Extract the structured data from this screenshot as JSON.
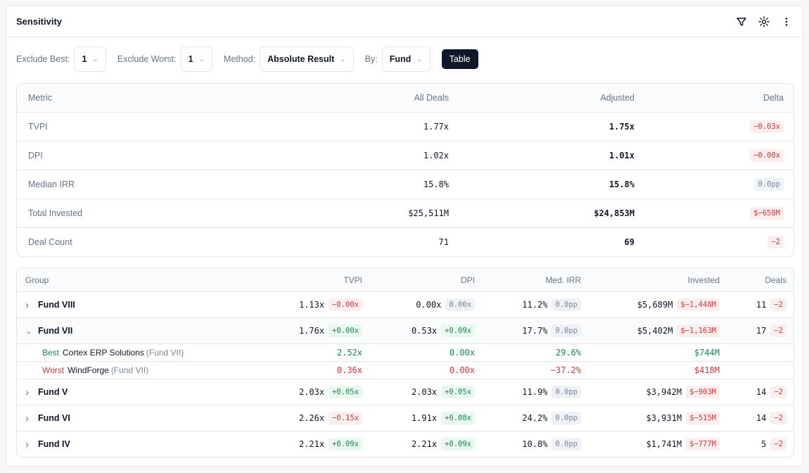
{
  "header": {
    "title": "Sensitivity",
    "icons": [
      "filter-icon",
      "sun-icon",
      "more-vertical-icon"
    ]
  },
  "controls": {
    "exclude_best": {
      "label": "Exclude Best:",
      "value": "1"
    },
    "exclude_worst": {
      "label": "Exclude Worst:",
      "value": "1"
    },
    "method": {
      "label": "Method:",
      "value": "Absolute Result"
    },
    "by": {
      "label": "By:",
      "value": "Fund"
    },
    "view_button": "Table"
  },
  "summary": {
    "headers": [
      "Metric",
      "All Deals",
      "Adjusted",
      "Delta"
    ],
    "rows": [
      {
        "metric": "TVPI",
        "all": "1.77x",
        "adjusted": "1.75x",
        "delta": "−0.03x",
        "tone": "neg"
      },
      {
        "metric": "DPI",
        "all": "1.02x",
        "adjusted": "1.01x",
        "delta": "−0.00x",
        "tone": "neg"
      },
      {
        "metric": "Median IRR",
        "all": "15.8%",
        "adjusted": "15.8%",
        "delta": "0.0pp",
        "tone": "neu"
      },
      {
        "metric": "Total Invested",
        "all": "$25,511M",
        "adjusted": "$24,853M",
        "delta": "$−658M",
        "tone": "neg"
      },
      {
        "metric": "Deal Count",
        "all": "71",
        "adjusted": "69",
        "delta": "−2",
        "tone": "neg"
      }
    ]
  },
  "groups": {
    "headers": [
      "Group",
      "TVPI",
      "DPI",
      "Med. IRR",
      "Invested",
      "Deals"
    ],
    "rows": [
      {
        "name": "Fund VIII",
        "expanded": false,
        "tvpi": "1.13x",
        "tvpi_d": "−0.00x",
        "tvpi_t": "neg",
        "dpi": "0.00x",
        "dpi_d": "0.00x",
        "dpi_t": "neu",
        "irr": "11.2%",
        "irr_d": "0.0pp",
        "inv": "$5,689M",
        "inv_d": "$−1,448M",
        "deals": "11",
        "deals_d": "−2"
      },
      {
        "name": "Fund VII",
        "expanded": true,
        "tvpi": "1.76x",
        "tvpi_d": "+0.00x",
        "tvpi_t": "pos",
        "dpi": "0.53x",
        "dpi_d": "+0.09x",
        "dpi_t": "pos",
        "irr": "17.7%",
        "irr_d": "0.0pp",
        "inv": "$5,402M",
        "inv_d": "$−1,163M",
        "deals": "17",
        "deals_d": "−2",
        "children": [
          {
            "kind": "Best",
            "deal": "Cortex ERP Solutions",
            "fund": "(Fund VII)",
            "tvpi": "2.52x",
            "dpi": "0.00x",
            "irr": "29.6%",
            "inv": "$744M",
            "tone": "green"
          },
          {
            "kind": "Worst",
            "deal": "WindForge",
            "fund": "(Fund VII)",
            "tvpi": "0.36x",
            "dpi": "0.00x",
            "irr": "−37.2%",
            "inv": "$418M",
            "tone": "red"
          }
        ]
      },
      {
        "name": "Fund V",
        "expanded": false,
        "tvpi": "2.03x",
        "tvpi_d": "+0.05x",
        "tvpi_t": "pos",
        "dpi": "2.03x",
        "dpi_d": "+0.05x",
        "dpi_t": "pos",
        "irr": "11.9%",
        "irr_d": "0.0pp",
        "inv": "$3,942M",
        "inv_d": "$−903M",
        "deals": "14",
        "deals_d": "−2"
      },
      {
        "name": "Fund VI",
        "expanded": false,
        "tvpi": "2.26x",
        "tvpi_d": "−0.15x",
        "tvpi_t": "neg",
        "dpi": "1.91x",
        "dpi_d": "+0.08x",
        "dpi_t": "pos",
        "irr": "24.2%",
        "irr_d": "0.0pp",
        "inv": "$3,931M",
        "inv_d": "$−515M",
        "deals": "14",
        "deals_d": "−2"
      },
      {
        "name": "Fund IV",
        "expanded": false,
        "tvpi": "2.21x",
        "tvpi_d": "+0.09x",
        "tvpi_t": "pos",
        "dpi": "2.21x",
        "dpi_d": "+0.09x",
        "dpi_t": "pos",
        "irr": "10.8%",
        "irr_d": "0.0pp",
        "inv": "$1,741M",
        "inv_d": "$−777M",
        "deals": "5",
        "deals_d": "−2"
      }
    ]
  }
}
